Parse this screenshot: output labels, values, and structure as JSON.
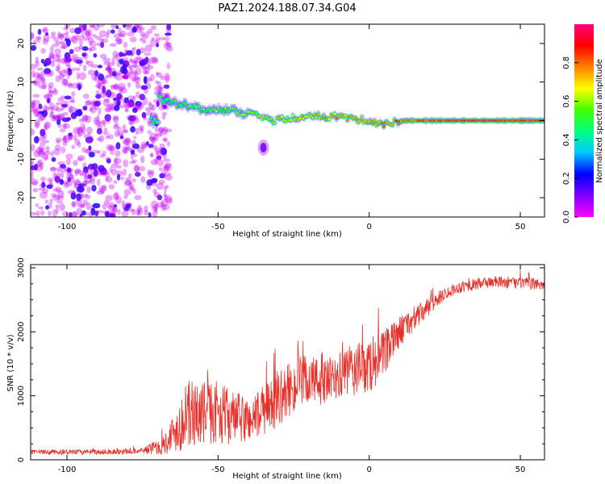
{
  "chart_data": [
    {
      "type": "heatmap",
      "title": "PAZ1.2024.188.07.34.G04",
      "xlabel": "Height of straight line (km)",
      "ylabel": "Frequency (Hz)",
      "xlim": [
        -112,
        58
      ],
      "ylim": [
        -25,
        25
      ],
      "xticks": [
        -100,
        -50,
        0,
        50
      ],
      "yticks": [
        -20,
        -10,
        0,
        10,
        20
      ],
      "colorbar": {
        "label": "Normalized spectral amplitude",
        "range": [
          0,
          1
        ],
        "ticks": [
          "0.0",
          "0.2",
          "0.4",
          "0.6",
          "0.8"
        ],
        "colors": [
          "#ff00ff",
          "#8000ff",
          "#0000ff",
          "#00c8ff",
          "#00ff80",
          "#40ff00",
          "#ffff00",
          "#ff8000",
          "#ff0000",
          "#ff0080"
        ]
      },
      "ridge": {
        "description_points": [
          [
            -70,
            6
          ],
          [
            -62,
            4
          ],
          [
            -55,
            3
          ],
          [
            -45,
            2.5
          ],
          [
            -38,
            1.5
          ],
          [
            -32,
            0
          ],
          [
            -20,
            1
          ],
          [
            -10,
            1
          ],
          [
            0,
            0
          ],
          [
            5,
            -1
          ],
          [
            12,
            0
          ],
          [
            30,
            0
          ],
          [
            58,
            0
          ]
        ],
        "isolated_blob": [
          -35,
          -7
        ]
      },
      "noise_region_xmax": -68
    },
    {
      "type": "line",
      "xlabel": "Height of straight line (km)",
      "ylabel": "SNR (10 * v/v)",
      "xlim": [
        -112,
        58
      ],
      "ylim": [
        0,
        3050
      ],
      "xticks": [
        -100,
        -50,
        0,
        50
      ],
      "yticks": [
        0,
        1000,
        2000,
        3000
      ],
      "color": "#e8302a",
      "envelope": {
        "x": [
          -112,
          -90,
          -75,
          -68,
          -60,
          -50,
          -45,
          -40,
          -35,
          -30,
          -25,
          -20,
          -15,
          -10,
          -5,
          0,
          5,
          10,
          15,
          20,
          25,
          30,
          40,
          50,
          58
        ],
        "mean": [
          120,
          120,
          140,
          230,
          700,
          750,
          650,
          620,
          750,
          950,
          1150,
          1250,
          1200,
          1300,
          1400,
          1450,
          1650,
          2000,
          2200,
          2400,
          2600,
          2700,
          2780,
          2760,
          2740
        ],
        "amplitude": [
          60,
          70,
          80,
          250,
          900,
          800,
          700,
          600,
          650,
          700,
          700,
          700,
          600,
          600,
          700,
          700,
          600,
          400,
          300,
          250,
          150,
          150,
          150,
          150,
          150
        ]
      }
    }
  ]
}
